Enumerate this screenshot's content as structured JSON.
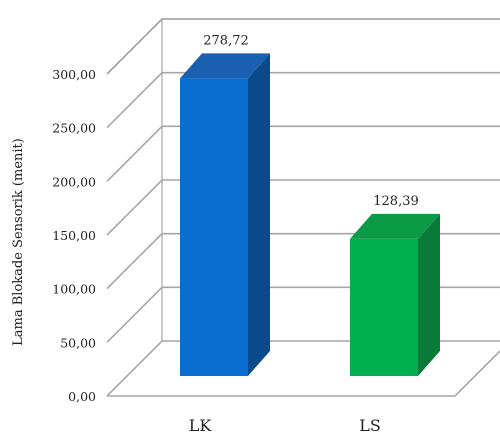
{
  "chart_data": {
    "type": "bar",
    "categories": [
      "LK",
      "LS"
    ],
    "values": [
      278.72,
      128.39
    ],
    "data_labels": [
      "278,72",
      "128,39"
    ],
    "ylabel": "Lama Blokade Sensorik (menit)",
    "xlabel": "",
    "ylim": [
      0,
      300
    ],
    "yticks": [
      0,
      50,
      100,
      150,
      200,
      250,
      300
    ],
    "ytick_labels": [
      "0,00",
      "50,00",
      "100,00",
      "150,00",
      "200,00",
      "250,00",
      "300,00"
    ],
    "grid": true,
    "style": "3d-column",
    "colors": {
      "LK": {
        "front": "#0a6ed1",
        "side": "#0a4a8a",
        "top": "#1a5fb0"
      },
      "LS": {
        "front": "#00b050",
        "side": "#0a7a38",
        "top": "#0c9a46"
      }
    },
    "grid_color": "#a6a6a6"
  }
}
